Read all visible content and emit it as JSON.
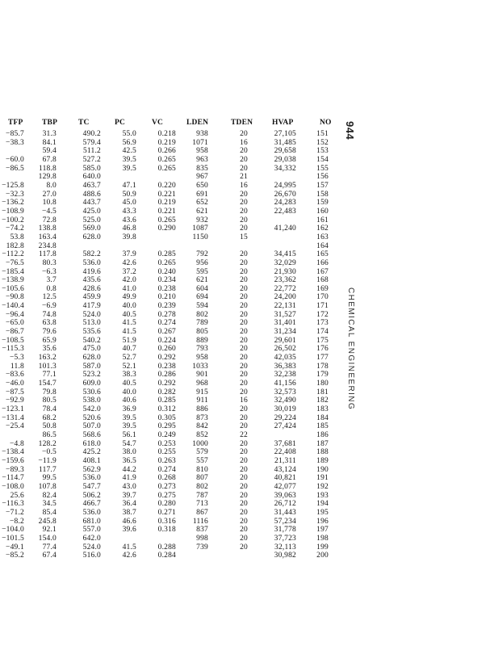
{
  "page": {
    "number": "944",
    "running_head": "CHEMICAL ENGINEERING"
  },
  "table": {
    "columns": [
      "TFP",
      "TBP",
      "TC",
      "PC",
      "VC",
      "LDEN",
      "TDEN",
      "HVAP",
      "NO"
    ],
    "rows": [
      [
        "−85.7",
        "31.3",
        "490.2",
        "55.0",
        "0.218",
        "938",
        "20",
        "27,105",
        "151"
      ],
      [
        "−38.3",
        "84.1",
        "579.4",
        "56.9",
        "0.219",
        "1071",
        "16",
        "31,485",
        "152"
      ],
      [
        "",
        "59.4",
        "511.2",
        "42.5",
        "0.266",
        "958",
        "20",
        "29,658",
        "153"
      ],
      [
        "−60.0",
        "67.8",
        "527.2",
        "39.5",
        "0.265",
        "963",
        "20",
        "29,038",
        "154"
      ],
      [
        "−86.5",
        "118.8",
        "585.0",
        "39.5",
        "0.265",
        "835",
        "20",
        "34,332",
        "155"
      ],
      [
        "",
        "129.8",
        "640.0",
        "",
        "",
        "967",
        "21",
        "",
        "156"
      ],
      [
        "−125.8",
        "8.0",
        "463.7",
        "47.1",
        "0.220",
        "650",
        "16",
        "24,995",
        "157"
      ],
      [
        "−32.3",
        "27.0",
        "488.6",
        "50.9",
        "0.221",
        "691",
        "20",
        "26,670",
        "158"
      ],
      [
        "−136.2",
        "10.8",
        "443.7",
        "45.0",
        "0.219",
        "652",
        "20",
        "24,283",
        "159"
      ],
      [
        "−108.9",
        "−4.5",
        "425.0",
        "43.3",
        "0.221",
        "621",
        "20",
        "22,483",
        "160"
      ],
      [
        "−100.2",
        "72.8",
        "525.0",
        "43.6",
        "0.265",
        "932",
        "20",
        "",
        "161"
      ],
      [
        "−74.2",
        "138.8",
        "569.0",
        "46.8",
        "0.290",
        "1087",
        "20",
        "41,240",
        "162"
      ],
      [
        "53.8",
        "163.4",
        "628.0",
        "39.8",
        "",
        "1150",
        "15",
        "",
        "163"
      ],
      [
        "182.8",
        "234.8",
        "",
        "",
        "",
        "",
        "",
        "",
        "164"
      ],
      [
        "−112.2",
        "117.8",
        "582.2",
        "37.9",
        "0.285",
        "792",
        "20",
        "34,415",
        "165"
      ],
      [
        "−76.5",
        "80.3",
        "536.0",
        "42.6",
        "0.265",
        "956",
        "20",
        "32,029",
        "166"
      ],
      [
        "−185.4",
        "−6.3",
        "419.6",
        "37.2",
        "0.240",
        "595",
        "20",
        "21,930",
        "167"
      ],
      [
        "−138.9",
        "3.7",
        "435.6",
        "42.0",
        "0.234",
        "621",
        "20",
        "23,362",
        "168"
      ],
      [
        "−105.6",
        "0.8",
        "428.6",
        "41.0",
        "0.238",
        "604",
        "20",
        "22,772",
        "169"
      ],
      [
        "−90.8",
        "12.5",
        "459.9",
        "49.9",
        "0.210",
        "694",
        "20",
        "24,200",
        "170"
      ],
      [
        "−140.4",
        "−6.9",
        "417.9",
        "40.0",
        "0.239",
        "594",
        "20",
        "22,131",
        "171"
      ],
      [
        "−96.4",
        "74.8",
        "524.0",
        "40.5",
        "0.278",
        "802",
        "20",
        "31,527",
        "172"
      ],
      [
        "−65.0",
        "63.8",
        "513.0",
        "41.5",
        "0.274",
        "789",
        "20",
        "31,401",
        "173"
      ],
      [
        "−86.7",
        "79.6",
        "535.6",
        "41.5",
        "0.267",
        "805",
        "20",
        "31,234",
        "174"
      ],
      [
        "−108.5",
        "65.9",
        "540.2",
        "51.9",
        "0.224",
        "889",
        "20",
        "29,601",
        "175"
      ],
      [
        "−115.3",
        "35.6",
        "475.0",
        "40.7",
        "0.260",
        "793",
        "20",
        "26,502",
        "176"
      ],
      [
        "−5.3",
        "163.2",
        "628.0",
        "52.7",
        "0.292",
        "958",
        "20",
        "42,035",
        "177"
      ],
      [
        "11.8",
        "101.3",
        "587.0",
        "52.1",
        "0.238",
        "1033",
        "20",
        "36,383",
        "178"
      ],
      [
        "−83.6",
        "77.1",
        "523.2",
        "38.3",
        "0.286",
        "901",
        "20",
        "32,238",
        "179"
      ],
      [
        "−46.0",
        "154.7",
        "609.0",
        "40.5",
        "0.292",
        "968",
        "20",
        "41,156",
        "180"
      ],
      [
        "−87.5",
        "79.8",
        "530.6",
        "40.0",
        "0.282",
        "915",
        "20",
        "32,573",
        "181"
      ],
      [
        "−92.9",
        "80.5",
        "538.0",
        "40.6",
        "0.285",
        "911",
        "16",
        "32,490",
        "182"
      ],
      [
        "−123.1",
        "78.4",
        "542.0",
        "36.9",
        "0.312",
        "886",
        "20",
        "30,019",
        "183"
      ],
      [
        "−131.4",
        "68.2",
        "520.6",
        "39.5",
        "0.305",
        "873",
        "20",
        "29,224",
        "184"
      ],
      [
        "−25.4",
        "50.8",
        "507.0",
        "39.5",
        "0.295",
        "842",
        "20",
        "27,424",
        "185"
      ],
      [
        "",
        "86.5",
        "568.6",
        "56.1",
        "0.249",
        "852",
        "22",
        "",
        "186"
      ],
      [
        "−4.8",
        "128.2",
        "618.0",
        "54.7",
        "0.253",
        "1000",
        "20",
        "37,681",
        "187"
      ],
      [
        "−138.4",
        "−0.5",
        "425.2",
        "38.0",
        "0.255",
        "579",
        "20",
        "22,408",
        "188"
      ],
      [
        "−159.6",
        "−11.9",
        "408.1",
        "36.5",
        "0.263",
        "557",
        "20",
        "21,311",
        "189"
      ],
      [
        "−89.3",
        "117.7",
        "562.9",
        "44.2",
        "0.274",
        "810",
        "20",
        "43,124",
        "190"
      ],
      [
        "−114.7",
        "99.5",
        "536.0",
        "41.9",
        "0.268",
        "807",
        "20",
        "40,821",
        "191"
      ],
      [
        "−108.0",
        "107.8",
        "547.7",
        "43.0",
        "0.273",
        "802",
        "20",
        "42,077",
        "192"
      ],
      [
        "25.6",
        "82.4",
        "506.2",
        "39.7",
        "0.275",
        "787",
        "20",
        "39,063",
        "193"
      ],
      [
        "−116.3",
        "34.5",
        "466.7",
        "36.4",
        "0.280",
        "713",
        "20",
        "26,712",
        "194"
      ],
      [
        "−71.2",
        "85.4",
        "536.0",
        "38.7",
        "0.271",
        "867",
        "20",
        "31,443",
        "195"
      ],
      [
        "−8.2",
        "245.8",
        "681.0",
        "46.6",
        "0.316",
        "1116",
        "20",
        "57,234",
        "196"
      ],
      [
        "−104.0",
        "92.1",
        "557.0",
        "39.6",
        "0.318",
        "837",
        "20",
        "31,778",
        "197"
      ],
      [
        "−101.5",
        "154.0",
        "642.0",
        "",
        "",
        "998",
        "20",
        "37,723",
        "198"
      ],
      [
        "−49.1",
        "77.4",
        "524.0",
        "41.5",
        "0.288",
        "739",
        "20",
        "32,113",
        "199"
      ],
      [
        "−85.2",
        "67.4",
        "516.0",
        "42.6",
        "0.284",
        "",
        "",
        "30,982",
        "200"
      ]
    ]
  }
}
